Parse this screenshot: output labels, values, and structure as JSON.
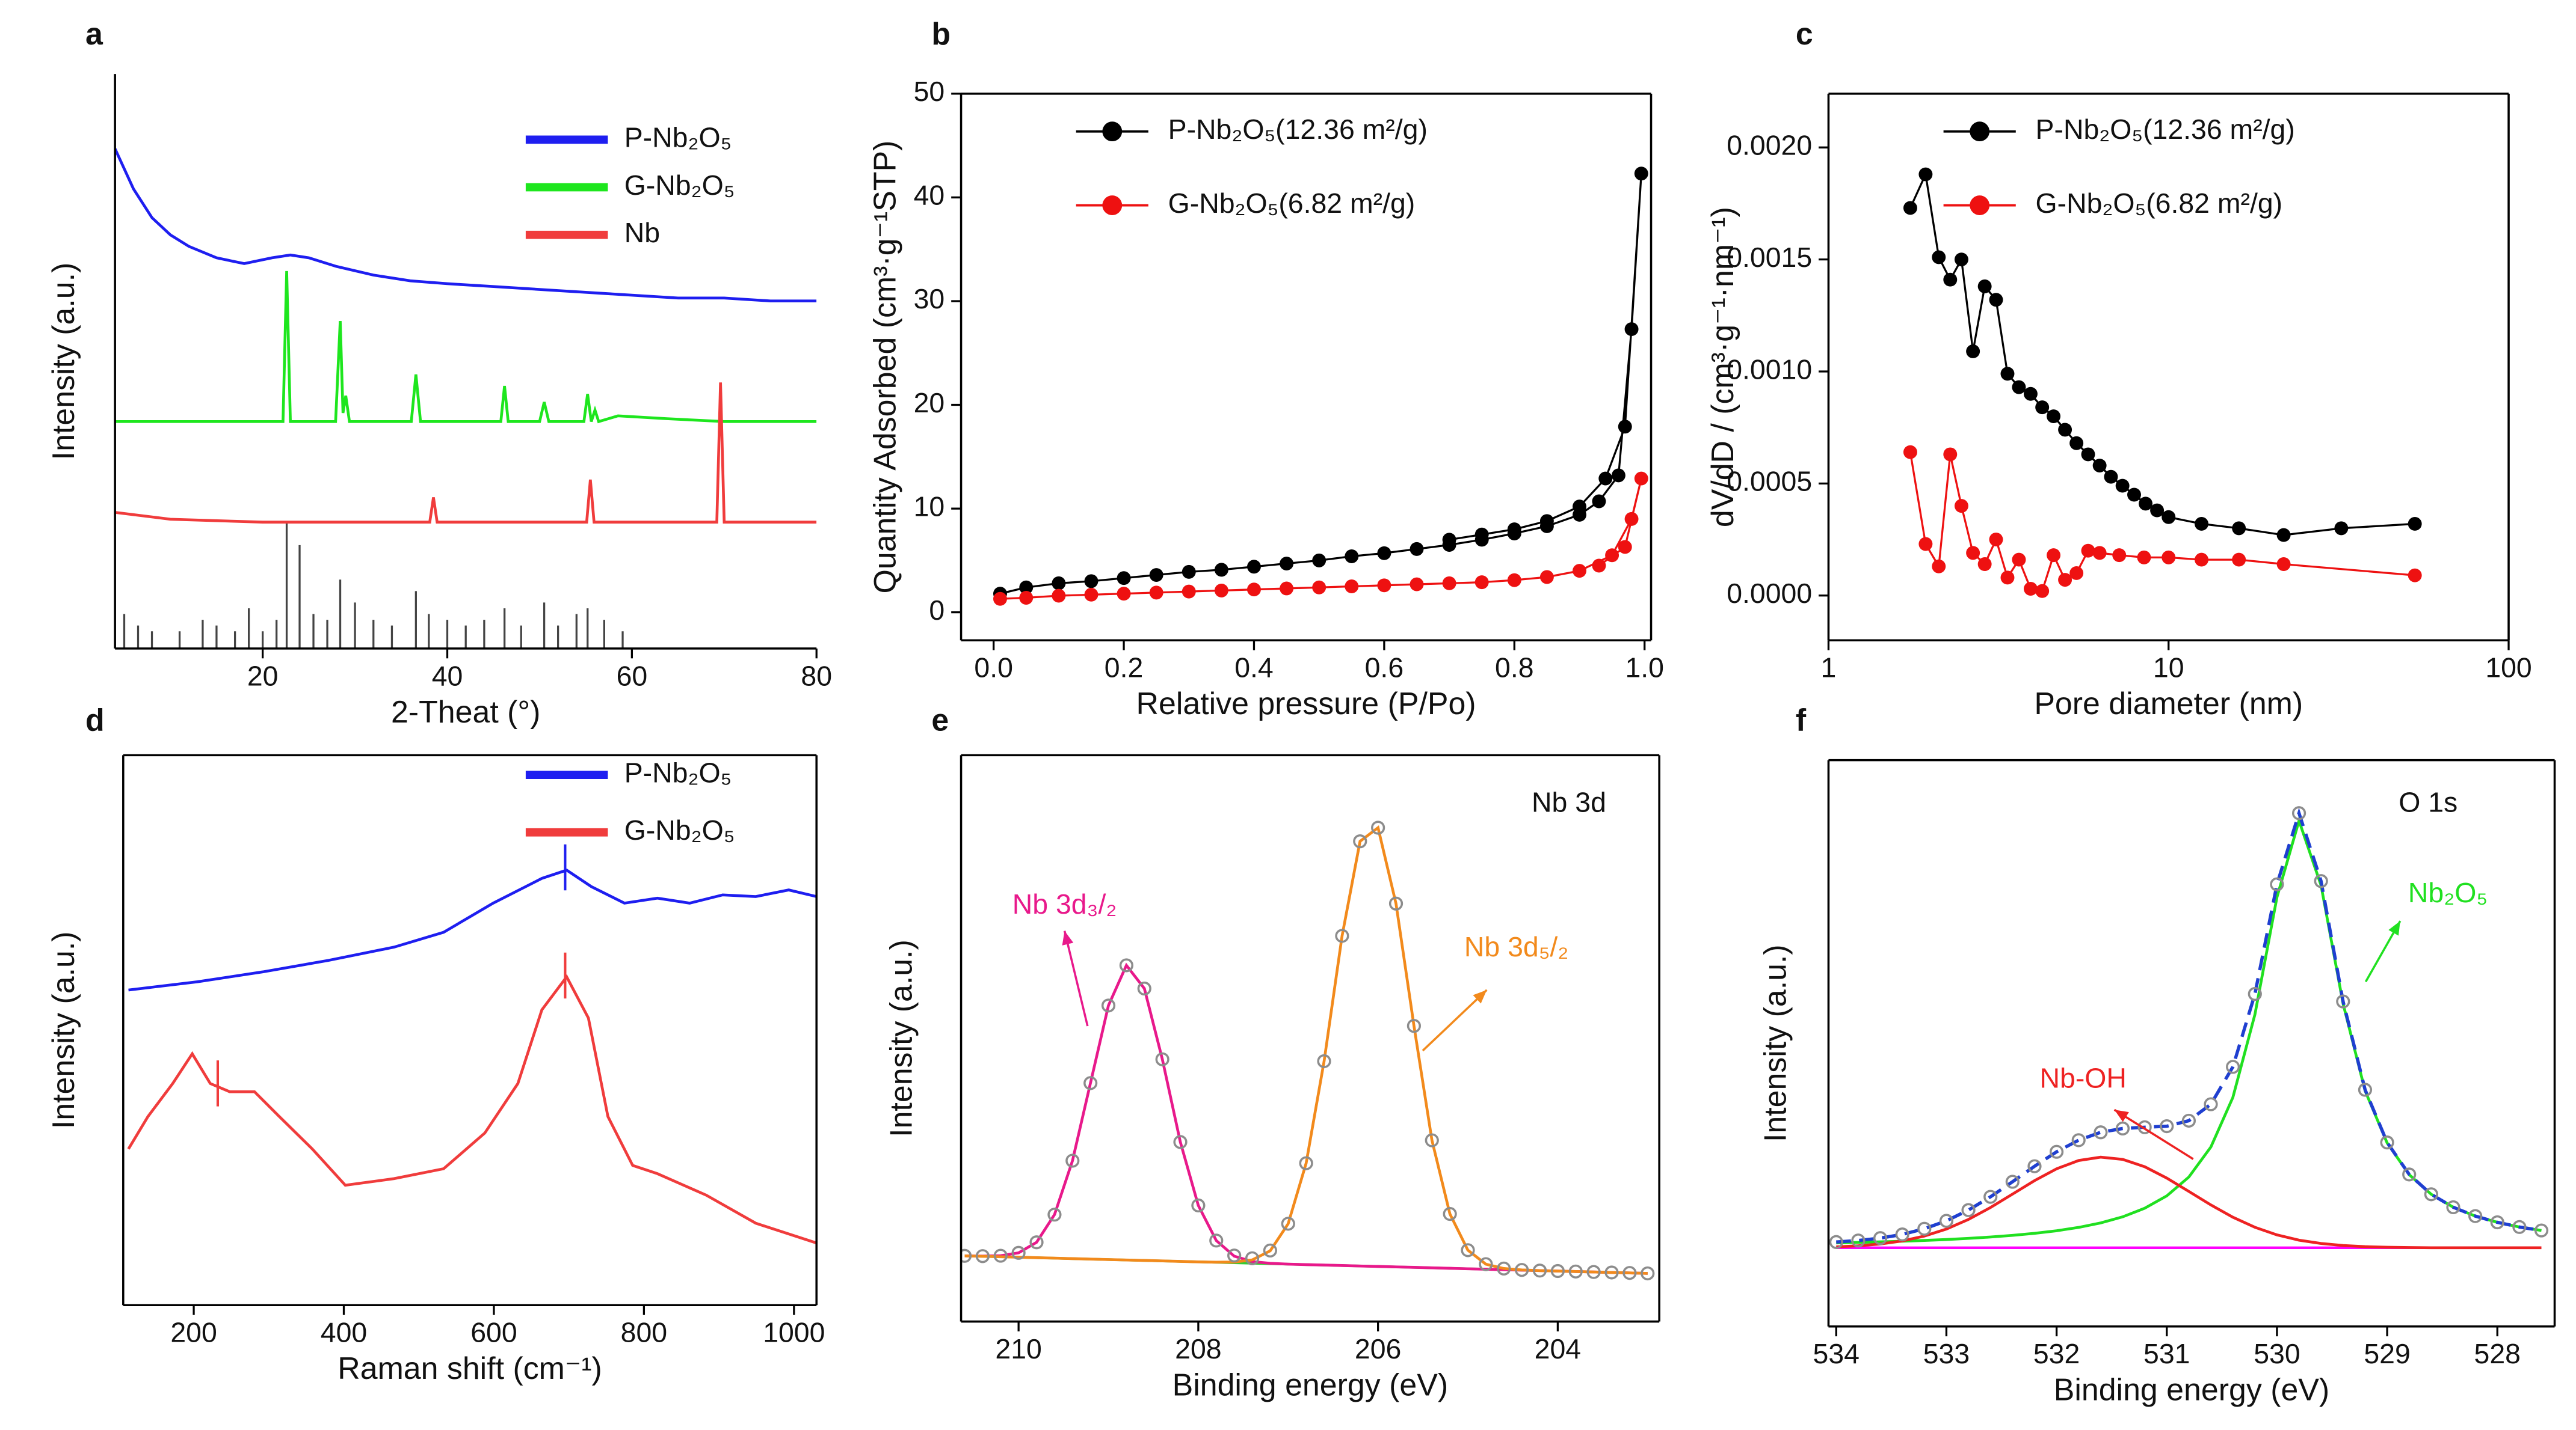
{
  "chart_data": [
    {
      "type": "line",
      "panel_label": "a",
      "xlabel": "2-Theat (°)",
      "ylabel": "Intensity (a.u.)",
      "xlim": [
        4,
        80
      ],
      "ylim": [
        0,
        100
      ],
      "xticks": [
        20,
        40,
        60,
        80
      ],
      "legend": "upper right",
      "series": [
        {
          "name": "P-Nb₂O₅",
          "color": "#1e1ef0",
          "x": [
            4,
            6,
            8,
            10,
            12,
            15,
            18,
            21,
            23,
            25,
            28,
            32,
            36,
            40,
            45,
            50,
            55,
            60,
            65,
            70,
            75,
            80
          ],
          "values": [
            87,
            80,
            75,
            72,
            70,
            68,
            67,
            68,
            68.5,
            68,
            66.5,
            65,
            64,
            63.5,
            63,
            62.5,
            62,
            61.5,
            61,
            61,
            60.5,
            60.5
          ]
        },
        {
          "name": "G-Nb₂O₅",
          "color": "#1ee61e",
          "x": [
            4,
            20,
            22.2,
            22.6,
            23.0,
            27.9,
            28.4,
            28.7,
            29.0,
            29.4,
            36.1,
            36.6,
            37.1,
            45.8,
            46.2,
            46.6,
            50.0,
            50.5,
            51.0,
            54.8,
            55.2,
            55.6,
            56.0,
            56.4,
            58.5,
            63.8,
            70,
            80
          ],
          "values": [
            39.5,
            39.5,
            39.5,
            65.7,
            39.5,
            39.5,
            57,
            41,
            44,
            39.5,
            39.5,
            47.7,
            39.5,
            39.5,
            45.7,
            39.5,
            39.5,
            42.9,
            39.5,
            39.5,
            44.3,
            39.5,
            41.5,
            39.5,
            40.5,
            40,
            39.5,
            39.5
          ]
        },
        {
          "name": "Nb",
          "color": "#f03c3c",
          "x": [
            4,
            10,
            20,
            38.1,
            38.5,
            38.9,
            55.1,
            55.5,
            55.9,
            69.2,
            69.6,
            70.0,
            80
          ],
          "values": [
            23.7,
            22.5,
            22,
            22,
            26.3,
            22,
            22,
            29.4,
            22,
            22,
            46.3,
            22,
            22
          ]
        }
      ],
      "reference_lines": {
        "color": "#444444",
        "x": [
          5,
          6.5,
          8,
          11,
          13.5,
          15,
          17,
          18.5,
          20,
          21.5,
          22.6,
          24.0,
          25.5,
          27,
          28.4,
          30,
          32,
          34,
          36.6,
          38,
          40,
          42,
          44,
          46.2,
          48,
          50.5,
          52,
          54,
          55.2,
          57,
          59
        ],
        "values": [
          6,
          4,
          3,
          3,
          5,
          4,
          3,
          7,
          3,
          5,
          22,
          18,
          6,
          5,
          12,
          8,
          5,
          4,
          10,
          6,
          5,
          4,
          5,
          7,
          4,
          8,
          4,
          6,
          7,
          5,
          3
        ]
      }
    },
    {
      "type": "line",
      "panel_label": "b",
      "xlabel": "Relative pressure (P/Po)",
      "ylabel": "Quantity Adsorbed (cm³·g⁻¹STP)",
      "xlim": [
        -0.05,
        1.01
      ],
      "ylim": [
        -2.7,
        50
      ],
      "xticks": [
        {
          "value": 0,
          "label": "0.0"
        },
        0.2,
        0.4,
        0.6,
        0.8,
        {
          "value": 1,
          "label": "1.0"
        }
      ],
      "yticks": [
        0,
        10,
        20,
        30,
        40,
        50
      ],
      "legend": "upper left",
      "series": [
        {
          "name": "P-Nb₂O₅(12.36 m²/g)",
          "color": "#000000",
          "marker": true,
          "x": [
            0.01,
            0.05,
            0.1,
            0.15,
            0.2,
            0.25,
            0.3,
            0.35,
            0.4,
            0.45,
            0.5,
            0.55,
            0.6,
            0.65,
            0.7,
            0.75,
            0.8,
            0.85,
            0.9,
            0.93,
            0.96,
            0.98,
            0.995,
            0.97,
            0.94,
            0.9,
            0.85,
            0.8,
            0.75,
            0.7
          ],
          "values": [
            1.8,
            2.4,
            2.8,
            3.0,
            3.3,
            3.6,
            3.9,
            4.1,
            4.4,
            4.7,
            5.0,
            5.4,
            5.7,
            6.1,
            6.5,
            7.0,
            7.6,
            8.3,
            9.4,
            10.7,
            13.2,
            27.3,
            42.3,
            17.9,
            12.9,
            10.2,
            8.8,
            8.0,
            7.5,
            7.0
          ]
        },
        {
          "name": "G-Nb₂O₅(6.82 m²/g)",
          "color": "#ee1111",
          "marker": true,
          "x": [
            0.01,
            0.05,
            0.1,
            0.15,
            0.2,
            0.25,
            0.3,
            0.35,
            0.4,
            0.45,
            0.5,
            0.55,
            0.6,
            0.65,
            0.7,
            0.75,
            0.8,
            0.85,
            0.9,
            0.95,
            0.98,
            0.995,
            0.97,
            0.93
          ],
          "values": [
            1.3,
            1.4,
            1.6,
            1.7,
            1.8,
            1.9,
            2.0,
            2.1,
            2.2,
            2.3,
            2.4,
            2.5,
            2.6,
            2.7,
            2.8,
            2.9,
            3.1,
            3.4,
            4.0,
            5.5,
            9.0,
            12.9,
            6.3,
            4.5
          ]
        }
      ]
    },
    {
      "type": "line",
      "panel_label": "c",
      "xlabel": "Pore diameter (nm)",
      "ylabel": "dV/dD / (cm³·g⁻¹·nm⁻¹)",
      "log_x": true,
      "xlim": [
        1,
        100
      ],
      "ylim": [
        -0.0002,
        0.00224
      ],
      "xticks": [
        1,
        10,
        100
      ],
      "yticks": [
        {
          "value": 0,
          "label": "0.0000"
        },
        {
          "value": 0.0005,
          "label": "0.0005"
        },
        {
          "value": 0.001,
          "label": "0.0010"
        },
        {
          "value": 0.0015,
          "label": "0.0015"
        },
        {
          "value": 0.002,
          "label": "0.0020"
        }
      ],
      "legend": "upper left",
      "series": [
        {
          "name": "P-Nb₂O₅(12.36 m²/g)",
          "color": "#000000",
          "marker": true,
          "x": [
            1.74,
            1.93,
            2.11,
            2.28,
            2.46,
            2.66,
            2.88,
            3.11,
            3.36,
            3.63,
            3.93,
            4.25,
            4.59,
            4.96,
            5.36,
            5.8,
            6.27,
            6.77,
            7.32,
            7.92,
            8.56,
            9.25,
            10,
            12.5,
            16.1,
            21.8,
            32.2,
            53
          ],
          "values": [
            0.00173,
            0.00188,
            0.00151,
            0.00141,
            0.0015,
            0.00109,
            0.00138,
            0.00132,
            0.00099,
            0.00093,
            0.0009,
            0.00084,
            0.0008,
            0.00074,
            0.00068,
            0.00063,
            0.00058,
            0.00053,
            0.00049,
            0.00045,
            0.00041,
            0.00038,
            0.00035,
            0.00032,
            0.0003,
            0.00027,
            0.0003,
            0.00032
          ]
        },
        {
          "name": "G-Nb₂O₅(6.82 m²/g)",
          "color": "#ee1111",
          "marker": true,
          "x": [
            1.74,
            1.93,
            2.11,
            2.28,
            2.46,
            2.66,
            2.88,
            3.11,
            3.36,
            3.63,
            3.93,
            4.25,
            4.59,
            4.96,
            5.36,
            5.8,
            6.27,
            7.16,
            8.47,
            10,
            12.5,
            16.1,
            21.8,
            53
          ],
          "values": [
            0.00064,
            0.00023,
            0.00013,
            0.00063,
            0.0004,
            0.00019,
            0.00014,
            0.00025,
            8e-05,
            0.00016,
            3e-05,
            2e-05,
            0.00018,
            7e-05,
            0.0001,
            0.0002,
            0.00019,
            0.00018,
            0.00017,
            0.00017,
            0.00016,
            0.00016,
            0.00014,
            9e-05
          ]
        }
      ]
    },
    {
      "type": "line",
      "panel_label": "d",
      "xlabel": "Raman shift (cm⁻¹)",
      "ylabel": "Intensity (a.u.)",
      "xlim": [
        106,
        1030
      ],
      "ylim": [
        0,
        100
      ],
      "xticks": [
        200,
        400,
        600,
        800,
        1000
      ],
      "legend": "upper right",
      "series": [
        {
          "name": "P-Nb₂O₅",
          "color": "#1e1ef0",
          "peaks": [
            695
          ],
          "x": [
            113,
            205,
            292,
            380,
            467,
            533,
            599,
            664,
            697,
            730,
            774,
            818,
            861,
            905,
            949,
            993,
            1030
          ],
          "values": [
            57.3,
            58.8,
            60.6,
            62.7,
            65.1,
            67.8,
            73.1,
            77.6,
            79.1,
            76.1,
            73.1,
            74.0,
            73.1,
            74.6,
            74.3,
            75.5,
            74.3
          ]
        },
        {
          "name": "G-Nb₂O₅",
          "color": "#f03c3c",
          "peaks": [
            232,
            695
          ],
          "x": [
            113,
            139,
            172,
            198,
            222,
            248,
            281,
            314,
            358,
            402,
            467,
            533,
            588,
            632,
            664,
            697,
            726,
            752,
            785,
            818,
            883,
            949,
            1030
          ],
          "values": [
            28.4,
            34.3,
            40.3,
            45.7,
            40.3,
            38.8,
            38.8,
            34.3,
            28.4,
            21.8,
            23.0,
            24.8,
            31.3,
            40.3,
            53.7,
            59.7,
            52.2,
            34.3,
            25.4,
            23.9,
            20.0,
            14.9,
            11.3
          ]
        }
      ]
    },
    {
      "type": "line",
      "panel_label": "e",
      "xlabel": "Binding energy (eV)",
      "ylabel": "Intensity (a.u.)",
      "annotation": "Nb 3d",
      "xlim": [
        210.64,
        202.87
      ],
      "ylim": [
        0,
        100
      ],
      "xticks": [
        210,
        208,
        206,
        204
      ],
      "x": [
        210.6,
        210.4,
        210.2,
        210.0,
        209.8,
        209.6,
        209.4,
        209.2,
        209.0,
        208.8,
        208.6,
        208.4,
        208.2,
        208.0,
        207.8,
        207.6,
        207.4,
        207.2,
        207.0,
        206.8,
        206.6,
        206.4,
        206.2,
        206.0,
        205.8,
        205.6,
        205.4,
        205.2,
        205.0,
        204.8,
        204.6,
        204.4,
        204.2,
        204.0,
        203.8,
        203.6,
        203.4,
        203.2,
        203.0
      ],
      "background": {
        "color": "#33cc33",
        "x": [
          210.6,
          203.0
        ],
        "values": [
          11.6,
          8.5
        ]
      },
      "series": [
        {
          "name": "Nb 3d₃/₂",
          "color": "#e8198b",
          "values": [
            11.6,
            11.55,
            11.62,
            12.13,
            13.99,
            18.88,
            28.4,
            42.1,
            55.8,
            62.9,
            58.8,
            46.3,
            31.7,
            20.5,
            14.3,
            11.54,
            10.59,
            10.28,
            10.14,
            10.05,
            9.97,
            9.89,
            9.81,
            9.73,
            9.65,
            9.57,
            9.49,
            9.4,
            9.32,
            9.24,
            9.16,
            9.08,
            9.0,
            8.92,
            8.83,
            8.75,
            8.66,
            8.58,
            8.5
          ]
        },
        {
          "name": "Nb 3d₅/₂",
          "color": "#f28a1c",
          "values": [
            11.6,
            11.52,
            11.44,
            11.35,
            11.27,
            11.19,
            11.11,
            11.03,
            10.95,
            10.87,
            10.79,
            10.71,
            10.62,
            10.54,
            10.48,
            10.5,
            10.88,
            12.48,
            17.27,
            27.95,
            45.97,
            68.1,
            84.8,
            87.2,
            73.8,
            52.2,
            32.0,
            19.0,
            12.6,
            10.13,
            9.36,
            9.11,
            9.0,
            8.92,
            8.83,
            8.75,
            8.66,
            8.58,
            8.5
          ]
        }
      ],
      "points": {
        "color": "#8c8c8c",
        "values": [
          11.6,
          11.55,
          11.62,
          12.13,
          13.99,
          18.88,
          28.4,
          42.1,
          55.8,
          62.9,
          58.8,
          46.3,
          31.7,
          20.5,
          14.3,
          11.66,
          11.17,
          12.54,
          17.27,
          27.95,
          45.97,
          68.1,
          84.8,
          87.2,
          73.8,
          52.2,
          32.0,
          19.0,
          12.6,
          10.13,
          9.36,
          9.11,
          9.0,
          8.92,
          8.83,
          8.75,
          8.66,
          8.58,
          8.5
        ]
      }
    },
    {
      "type": "line",
      "panel_label": "f",
      "xlabel": "Binding energy (eV)",
      "ylabel": "Intensity (a.u.)",
      "annotation": "O 1s",
      "xlim": [
        534.07,
        527.48
      ],
      "ylim": [
        0,
        100
      ],
      "xticks": [
        534,
        533,
        532,
        531,
        530,
        529,
        528
      ],
      "x": [
        534.0,
        533.8,
        533.6,
        533.4,
        533.2,
        533.0,
        532.8,
        532.6,
        532.4,
        532.2,
        532.0,
        531.8,
        531.6,
        531.4,
        531.2,
        531.0,
        530.8,
        530.6,
        530.4,
        530.2,
        530.0,
        529.8,
        529.6,
        529.4,
        529.2,
        529.0,
        528.8,
        528.6,
        528.4,
        528.2,
        528.0,
        527.8,
        527.6
      ],
      "background": {
        "color": "#ff00ff",
        "x": [
          534.0,
          527.6
        ],
        "values": [
          13.9,
          13.9
        ]
      },
      "series": [
        {
          "name": "Nb₂O₅",
          "color": "#20e020",
          "values": [
            14.75,
            14.84,
            14.94,
            15.05,
            15.19,
            15.35,
            15.55,
            15.79,
            16.08,
            16.44,
            16.9,
            17.49,
            18.28,
            19.36,
            20.88,
            23.06,
            26.38,
            31.68,
            40.45,
            55.1,
            75.8,
            89.3,
            77.9,
            57.0,
            41.6,
            32.4,
            26.8,
            23.34,
            21.05,
            19.49,
            18.39,
            17.56,
            16.95
          ]
        },
        {
          "name": "Nb-OH",
          "color": "#ee2222",
          "values": [
            14.06,
            14.24,
            14.56,
            15.1,
            15.96,
            17.2,
            18.9,
            21.0,
            23.37,
            25.75,
            27.84,
            29.3,
            29.9,
            29.5,
            28.2,
            26.2,
            23.85,
            21.46,
            19.29,
            17.51,
            16.17,
            15.24,
            14.65,
            14.29,
            14.09,
            13.99,
            13.94,
            13.9,
            13.9,
            13.9,
            13.9,
            13.9,
            13.9
          ]
        }
      ],
      "envelope": {
        "color": "#1f3fd0",
        "line_style": "dashed",
        "values": [
          14.91,
          15.18,
          15.6,
          16.25,
          17.25,
          18.65,
          20.55,
          22.89,
          25.55,
          28.29,
          30.84,
          32.89,
          34.28,
          34.96,
          35.18,
          35.36,
          36.33,
          39.24,
          45.84,
          58.71,
          78.07,
          90.64,
          78.65,
          57.39,
          41.79,
          32.49,
          26.84,
          23.34,
          21.05,
          19.49,
          18.39,
          17.56,
          16.95
        ]
      },
      "points": {
        "color": "#8c8c8c",
        "values": [
          14.91,
          15.18,
          15.6,
          16.25,
          17.25,
          18.65,
          20.55,
          22.89,
          25.55,
          28.29,
          30.84,
          32.89,
          34.28,
          34.96,
          35.18,
          35.36,
          36.33,
          39.24,
          45.84,
          58.71,
          78.07,
          90.64,
          78.65,
          57.39,
          41.79,
          32.49,
          26.84,
          23.34,
          21.05,
          19.49,
          18.39,
          17.56,
          16.95
        ]
      }
    }
  ]
}
